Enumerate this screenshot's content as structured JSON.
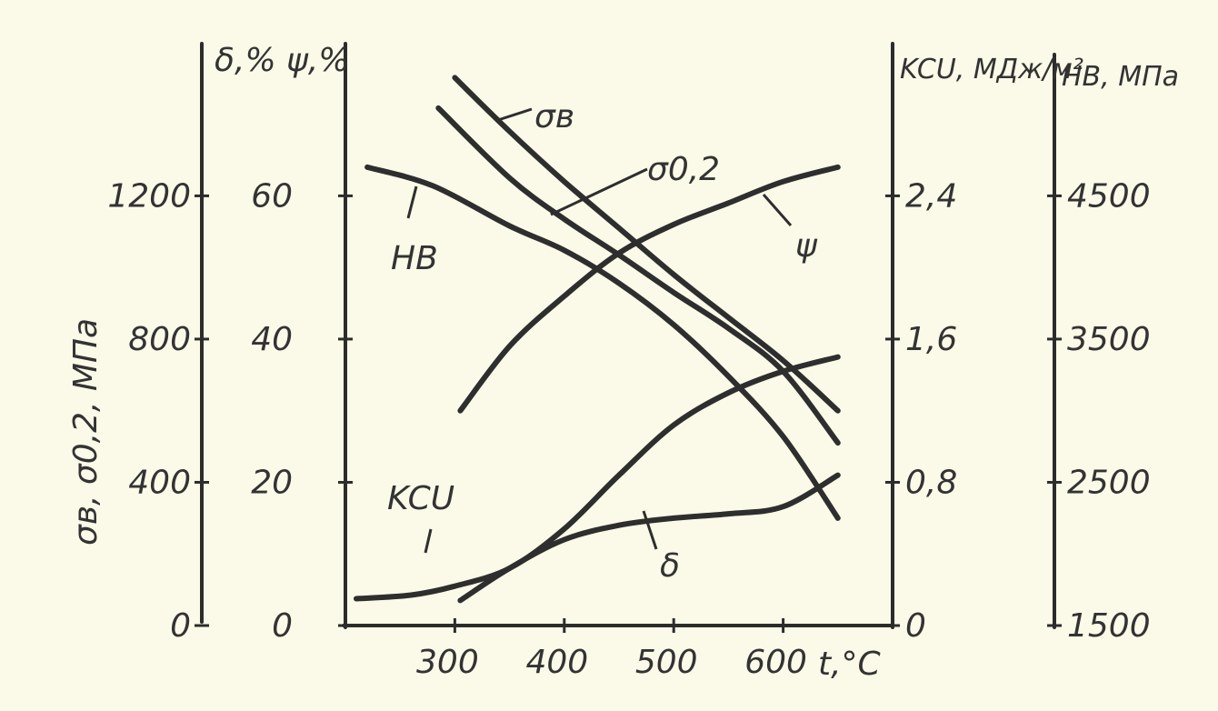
{
  "chart_data": {
    "type": "line",
    "x_axis": {
      "label": "t,°C",
      "ticks": [
        300,
        400,
        500,
        600
      ],
      "range": [
        200,
        700
      ]
    },
    "y_axes": [
      {
        "id": "strength",
        "label": "σв, σ0,2, МПа",
        "ticks": [
          "0",
          "400",
          "800",
          "1200"
        ],
        "range": [
          0,
          1620
        ]
      },
      {
        "id": "ductility",
        "label": "δ,%  ψ,%",
        "ticks": [
          "0",
          "20",
          "40",
          "60"
        ],
        "range": [
          0,
          81
        ]
      },
      {
        "id": "impact",
        "label": "KCU, МДж/м²",
        "ticks": [
          "0",
          "0,8",
          "1,6",
          "2,4"
        ],
        "range": [
          0,
          3.24
        ]
      },
      {
        "id": "hardness",
        "label": "HB, МПа",
        "ticks": [
          "1500",
          "2500",
          "3500",
          "4500"
        ],
        "range": [
          1500,
          5550
        ]
      }
    ],
    "series": [
      {
        "name": "σв",
        "axis": "strength",
        "x": [
          300,
          350,
          400,
          450,
          500,
          550,
          600,
          650
        ],
        "y": [
          1530,
          1380,
          1240,
          1110,
          980,
          860,
          740,
          600
        ]
      },
      {
        "name": "σ0,2",
        "axis": "strength",
        "x": [
          285,
          350,
          400,
          450,
          500,
          550,
          600,
          650
        ],
        "y": [
          1445,
          1250,
          1135,
          1035,
          930,
          830,
          710,
          510
        ]
      },
      {
        "name": "HB",
        "axis": "hardness",
        "x": [
          220,
          280,
          350,
          400,
          450,
          500,
          550,
          600,
          650
        ],
        "y": [
          4700,
          4570,
          4290,
          4120,
          3890,
          3600,
          3240,
          2820,
          2250
        ]
      },
      {
        "name": "ψ",
        "axis": "ductility",
        "x": [
          305,
          350,
          400,
          450,
          500,
          550,
          600,
          650
        ],
        "y": [
          30,
          39,
          46,
          52,
          56,
          59,
          62,
          64
        ]
      },
      {
        "name": "KCU",
        "axis": "impact",
        "x": [
          210,
          260,
          300,
          350,
          400,
          450,
          500,
          550,
          600,
          650
        ],
        "y": [
          0.15,
          0.17,
          0.22,
          0.32,
          0.54,
          0.84,
          1.12,
          1.3,
          1.42,
          1.5
        ]
      },
      {
        "name": "δ",
        "axis": "ductility",
        "x": [
          305,
          350,
          400,
          450,
          500,
          550,
          600,
          650
        ],
        "y": [
          3.5,
          8,
          12,
          14,
          15,
          15.6,
          16.6,
          21
        ]
      }
    ]
  }
}
